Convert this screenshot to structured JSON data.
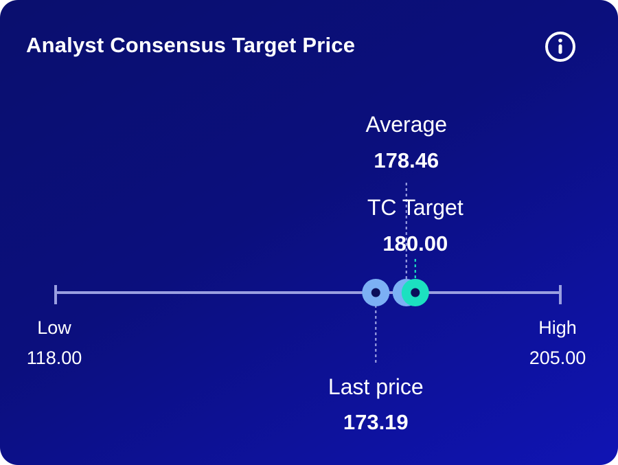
{
  "title": "Analyst Consensus Target Price",
  "info_icon": "info-icon",
  "colors": {
    "background_start": "#0a0f6e",
    "background_end": "#1014b4",
    "axis": "#9a9fe0",
    "marker_blue": "#7cb0f4",
    "marker_green": "#1ce0c0",
    "marker_center": "#0b0f5a"
  },
  "chart_data": {
    "type": "range-scale",
    "range": [
      118.0,
      205.0
    ],
    "low": {
      "label": "Low",
      "value_text": "118.00",
      "value": 118.0
    },
    "high": {
      "label": "High",
      "value_text": "205.00",
      "value": 205.0
    },
    "markers": [
      {
        "key": "last",
        "label": "Last price",
        "value_text": "173.19",
        "value": 173.19,
        "label_position": "below",
        "color": "#7cb0f4"
      },
      {
        "key": "avg",
        "label": "Average",
        "value_text": "178.46",
        "value": 178.46,
        "label_position": "above",
        "color": "#7cb0f4"
      },
      {
        "key": "tc",
        "label": "TC Target",
        "value_text": "180.00",
        "value": 180.0,
        "label_position": "above",
        "color": "#1ce0c0"
      }
    ]
  }
}
